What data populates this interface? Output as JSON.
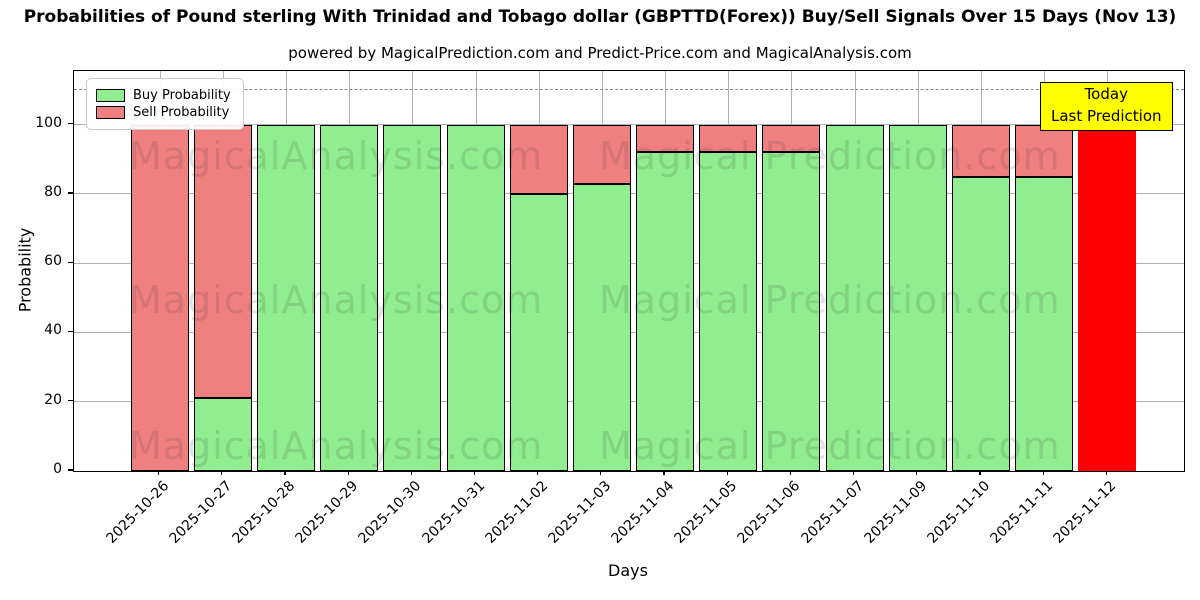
{
  "chart_data": {
    "type": "bar",
    "stacked": true,
    "title": "Probabilities of Pound sterling With Trinidad and Tobago dollar (GBPTTD(Forex)) Buy/Sell Signals Over 15 Days (Nov 13)",
    "subtitle": "powered by MagicalPrediction.com and Predict-Price.com and MagicalAnalysis.com",
    "xlabel": "Days",
    "ylabel": "Probability",
    "ylim": [
      0,
      115.5
    ],
    "yticks": [
      0,
      20,
      40,
      60,
      80,
      100
    ],
    "grid": true,
    "dashed_threshold_y": 110,
    "legend_position": "upper-left",
    "categories": [
      "2025-10-26",
      "2025-10-27",
      "2025-10-28",
      "2025-10-29",
      "2025-10-30",
      "2025-10-31",
      "2025-11-02",
      "2025-11-03",
      "2025-11-04",
      "2025-11-05",
      "2025-11-06",
      "2025-11-07",
      "2025-11-09",
      "2025-11-10",
      "2025-11-11",
      "2025-11-12"
    ],
    "series": [
      {
        "name": "Buy Probability",
        "color": "#90ee90",
        "values": [
          0,
          21,
          100,
          100,
          100,
          100,
          80,
          83,
          92,
          92,
          92,
          100,
          100,
          85,
          85,
          0
        ]
      },
      {
        "name": "Sell Probability",
        "color": "#f08080",
        "values": [
          100,
          79,
          0,
          0,
          0,
          0,
          20,
          17,
          8,
          8,
          8,
          0,
          0,
          15,
          15,
          0
        ]
      }
    ],
    "today_bar": {
      "category": "2025-11-12",
      "value": 100,
      "color": "#ff0000"
    }
  },
  "legend": {
    "items": [
      {
        "label": "Buy Probability",
        "color": "#90ee90"
      },
      {
        "label": "Sell Probability",
        "color": "#f08080"
      }
    ]
  },
  "annotation": {
    "line1": "Today",
    "line2": "Last Prediction",
    "bg_color": "#ffff00"
  },
  "watermarks": {
    "left": "MagicalAnalysis.com",
    "right": "Magical Prediction.com"
  },
  "colors": {
    "buy": "#90ee90",
    "sell": "#f08080",
    "today": "#ff0000",
    "annotation_bg": "#ffff00"
  }
}
